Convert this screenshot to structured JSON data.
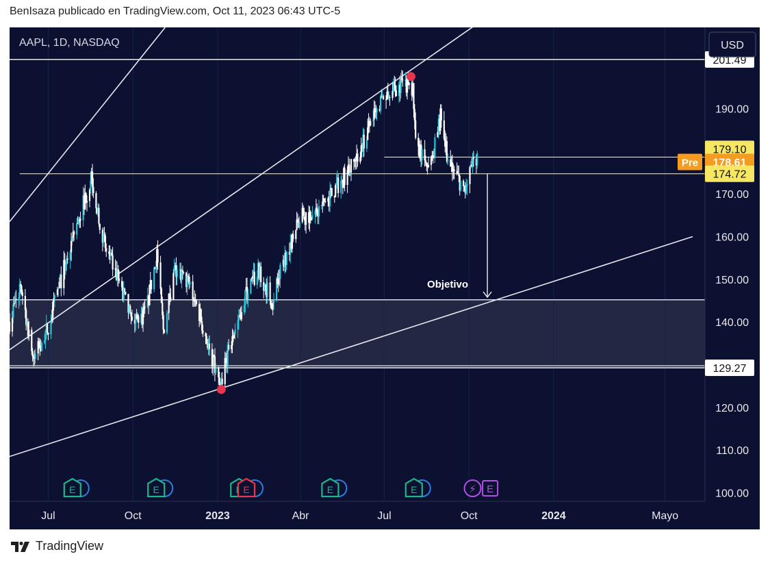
{
  "header": {
    "text": "BenIsaza publicado en TradingView.com, Oct 11, 2023 06:43 UTC-5"
  },
  "symbol": {
    "text": "AAPL, 1D, NASDAQ"
  },
  "currency": {
    "label": "USD"
  },
  "footer": {
    "brand": "TradingView"
  },
  "colors": {
    "background": "#0c1131",
    "candle": "#ffffff",
    "candle_up_alt": "#26c6da",
    "level_white": "#ffffff",
    "level_yellow": "#f5e663",
    "marker": "#e8344e",
    "pre_badge": "#f59b1f",
    "earnings_green": "#1db58a",
    "earnings_red": "#e8344e",
    "earnings_purple": "#b14ee8"
  },
  "chart_data": {
    "type": "candlestick",
    "symbol": "AAPL",
    "interval": "1D",
    "exchange": "NASDAQ",
    "ylim": [
      98,
      209
    ],
    "y_ticks": [
      100,
      110,
      120,
      130,
      140,
      150,
      160,
      170,
      180,
      190
    ],
    "y_tick_labels": [
      "100.00",
      "110.00",
      "120.00",
      "130.00",
      "140.00",
      "150.00",
      "160.00",
      "170.00",
      "180.00",
      "190.00"
    ],
    "x_ticks": [
      {
        "label": "Jul",
        "date": "2022-07-01",
        "bold": false
      },
      {
        "label": "Oct",
        "date": "2022-10-01",
        "bold": false
      },
      {
        "label": "2023",
        "date": "2023-01-01",
        "bold": true
      },
      {
        "label": "Abr",
        "date": "2023-04-01",
        "bold": false
      },
      {
        "label": "Jul",
        "date": "2023-07-01",
        "bold": false
      },
      {
        "label": "Oct",
        "date": "2023-10-01",
        "bold": false
      },
      {
        "label": "2024",
        "date": "2024-01-01",
        "bold": true
      },
      {
        "label": "Mayo",
        "date": "2024-05-01",
        "bold": false
      }
    ],
    "price_path": [
      [
        "2022-05-20",
        140
      ],
      [
        "2022-06-01",
        149
      ],
      [
        "2022-06-15",
        131
      ],
      [
        "2022-07-01",
        139
      ],
      [
        "2022-07-15",
        150
      ],
      [
        "2022-08-01",
        163
      ],
      [
        "2022-08-17",
        174
      ],
      [
        "2022-09-01",
        157
      ],
      [
        "2022-09-15",
        150
      ],
      [
        "2022-09-30",
        140
      ],
      [
        "2022-10-15",
        142
      ],
      [
        "2022-10-27",
        156
      ],
      [
        "2022-11-03",
        138
      ],
      [
        "2022-11-15",
        152
      ],
      [
        "2022-12-01",
        149
      ],
      [
        "2022-12-15",
        140
      ],
      [
        "2023-01-03",
        125
      ],
      [
        "2023-01-15",
        135
      ],
      [
        "2023-02-01",
        147
      ],
      [
        "2023-02-15",
        152
      ],
      [
        "2023-03-01",
        145
      ],
      [
        "2023-03-15",
        155
      ],
      [
        "2023-04-01",
        165
      ],
      [
        "2023-04-15",
        165
      ],
      [
        "2023-05-01",
        169
      ],
      [
        "2023-05-15",
        173
      ],
      [
        "2023-06-01",
        178
      ],
      [
        "2023-06-15",
        186
      ],
      [
        "2023-07-01",
        193
      ],
      [
        "2023-07-19",
        196
      ],
      [
        "2023-08-01",
        195
      ],
      [
        "2023-08-04",
        181
      ],
      [
        "2023-08-20",
        176
      ],
      [
        "2023-09-01",
        189
      ],
      [
        "2023-09-08",
        177
      ],
      [
        "2023-09-15",
        175
      ],
      [
        "2023-09-27",
        171
      ],
      [
        "2023-10-05",
        177
      ],
      [
        "2023-10-10",
        178.6
      ]
    ],
    "horizontal_levels": [
      {
        "price": 201.49,
        "label": "201.49",
        "color": "white"
      },
      {
        "price": 129.27,
        "label": "129.27",
        "color": "white"
      },
      {
        "price": 145.2,
        "label": "",
        "color": "white"
      }
    ],
    "price_labels": [
      {
        "price": 179.1,
        "label": "179.10",
        "style": "yellow"
      },
      {
        "price": 178.61,
        "label": "178.61",
        "style": "pre",
        "tag": "Pre"
      },
      {
        "price": 174.72,
        "label": "174.72",
        "style": "yellow"
      }
    ],
    "yellow_lines": [
      {
        "price": 174.72,
        "from": "2022-05-31",
        "to": "axis"
      },
      {
        "price": 178.61,
        "from": "2023-07-01",
        "to": "axis"
      }
    ],
    "zone": {
      "from_price": 129.27,
      "to_price": 145.2
    },
    "trendlines": [
      {
        "points": [
          [
            "2022-05-20",
            163.5
          ],
          [
            "2022-11-05",
            209
          ]
        ]
      },
      {
        "points": [
          [
            "2022-05-20",
            133.5
          ],
          [
            "2023-10-31",
            213
          ]
        ]
      },
      {
        "points": [
          [
            "2022-05-20",
            108.5
          ],
          [
            "2024-05-31",
            160
          ]
        ]
      }
    ],
    "markers": [
      {
        "date": "2023-07-30",
        "price": 197.5,
        "color": "red"
      },
      {
        "date": "2023-01-05",
        "price": 124.2,
        "color": "red"
      }
    ],
    "target_arrow": {
      "date": "2023-10-21",
      "from_price": 174.72,
      "to_price": 145.8,
      "label": "Objetivo"
    },
    "events": [
      {
        "date": "2022-07-28",
        "icon": "E",
        "type": "earnings-green"
      },
      {
        "date": "2022-10-27",
        "icon": "E",
        "type": "earnings-green"
      },
      {
        "date": "2023-01-25",
        "icon": "E",
        "type": "earnings-green"
      },
      {
        "date": "2023-05-04",
        "icon": "E",
        "type": "earnings-green"
      },
      {
        "date": "2023-08-03",
        "icon": "E",
        "type": "earnings-green"
      },
      {
        "date": "2022-10-27",
        "icon": "E",
        "type": "skip"
      },
      {
        "date": "2023-02-02",
        "icon": "E",
        "type": "earnings-red"
      },
      {
        "date": "2023-10-05",
        "icon": "⚡",
        "type": "dividend-purple"
      },
      {
        "date": "2023-10-24",
        "icon": "E",
        "type": "earnings-purple"
      }
    ]
  }
}
